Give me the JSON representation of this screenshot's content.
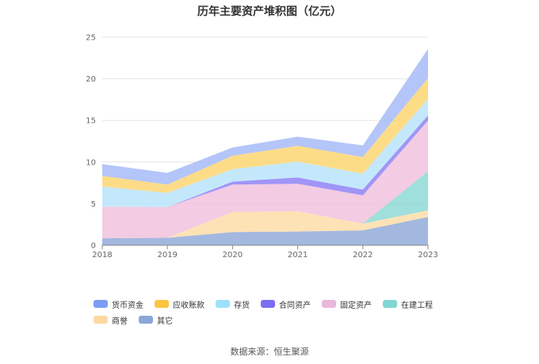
{
  "chart_data": {
    "type": "area",
    "stacked": true,
    "title": "历年主要资产堆积图（亿元）",
    "source": "数据来源：恒生聚源",
    "xlabel": "",
    "ylabel": "",
    "x": [
      "2018",
      "2019",
      "2020",
      "2021",
      "2022",
      "2023"
    ],
    "ylim": [
      0,
      25
    ],
    "yticks": [
      "0",
      "5",
      "10",
      "15",
      "20",
      "25"
    ],
    "grid": true,
    "legend_position": "bottom",
    "series": [
      {
        "name": "其它",
        "color": "#8fa8d8",
        "values": [
          0.85,
          0.9,
          1.6,
          1.65,
          1.8,
          3.4
        ]
      },
      {
        "name": "商誉",
        "color": "#fddca6",
        "values": [
          0.0,
          0.0,
          2.4,
          2.45,
          0.8,
          0.8
        ]
      },
      {
        "name": "在建工程",
        "color": "#8ad8d4",
        "values": [
          0.0,
          0.0,
          0.0,
          0.0,
          0.0,
          4.7
        ]
      },
      {
        "name": "固定资产",
        "color": "#f0c0dd",
        "values": [
          3.8,
          3.7,
          3.3,
          3.3,
          3.4,
          6.1
        ]
      },
      {
        "name": "合同资产",
        "color": "#8b7ef5",
        "values": [
          0.0,
          0.0,
          0.35,
          0.75,
          0.7,
          0.6
        ]
      },
      {
        "name": "存货",
        "color": "#b7e3fa",
        "values": [
          2.4,
          1.7,
          1.5,
          1.9,
          1.9,
          2.0
        ]
      },
      {
        "name": "应收账款",
        "color": "#fdd46e",
        "values": [
          1.3,
          1.0,
          1.6,
          1.9,
          2.0,
          2.5
        ]
      },
      {
        "name": "货币资金",
        "color": "#a4b8f8",
        "values": [
          1.4,
          1.4,
          1.0,
          1.1,
          1.4,
          3.5
        ]
      }
    ],
    "legend": [
      {
        "name": "货币资金",
        "color": "#7b9cf2"
      },
      {
        "name": "应收账款",
        "color": "#fdc43f"
      },
      {
        "name": "存货",
        "color": "#9ee0fb"
      },
      {
        "name": "合同资产",
        "color": "#7a6ff0"
      },
      {
        "name": "固定资产",
        "color": "#eab8dc"
      },
      {
        "name": "在建工程",
        "color": "#7fd6d2"
      },
      {
        "name": "商誉",
        "color": "#fdd9a1"
      },
      {
        "name": "其它",
        "color": "#8aa6d9"
      }
    ]
  }
}
